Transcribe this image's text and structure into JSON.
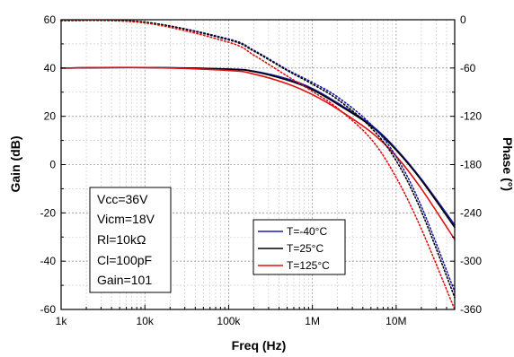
{
  "chart_data": {
    "type": "line",
    "xlabel": "Freq (Hz)",
    "ylabel": "Gain (dB)",
    "y2label": "Phase (°)",
    "xscale": "log",
    "xlim": [
      1000,
      50000000
    ],
    "ylim": [
      -60,
      60
    ],
    "y2lim": [
      -360,
      0
    ],
    "grid": true,
    "x_ticks": [
      {
        "value": 1000,
        "label": "1k"
      },
      {
        "value": 10000,
        "label": "10k"
      },
      {
        "value": 100000,
        "label": "100k"
      },
      {
        "value": 1000000,
        "label": "1M"
      },
      {
        "value": 10000000,
        "label": "10M"
      }
    ],
    "y_ticks": [
      {
        "value": 60,
        "label": "60"
      },
      {
        "value": 40,
        "label": "40"
      },
      {
        "value": 20,
        "label": "20"
      },
      {
        "value": 0,
        "label": "0"
      },
      {
        "value": -20,
        "label": "-20"
      },
      {
        "value": -40,
        "label": "-40"
      },
      {
        "value": -60,
        "label": "-60"
      }
    ],
    "y2_ticks": [
      {
        "value": 0,
        "label": "0"
      },
      {
        "value": -60,
        "label": "-60"
      },
      {
        "value": -120,
        "label": "-120"
      },
      {
        "value": -180,
        "label": "-180"
      },
      {
        "value": -240,
        "label": "-240"
      },
      {
        "value": -300,
        "label": "-300"
      },
      {
        "value": -360,
        "label": "-360"
      }
    ],
    "annotation_lines": [
      "Vcc=36V",
      "Vicm=18V",
      "Rl=10kΩ",
      "Cl=100pF",
      "Gain=101"
    ],
    "legend_position": "bottom-center",
    "series": [
      {
        "name": "T=-40°C",
        "color": "#1a1aa6",
        "axis": "gain",
        "style": "solid",
        "x": [
          1000,
          10000,
          100000,
          200000,
          500000,
          1000000,
          2000000,
          5000000,
          10000000,
          20000000,
          50000000
        ],
        "y": [
          40,
          40.2,
          39.6,
          38.7,
          35.5,
          31.5,
          25.5,
          16.5,
          6.5,
          -6,
          -25
        ]
      },
      {
        "name": "T=25°C",
        "color": "#000000",
        "axis": "gain",
        "style": "solid",
        "x": [
          1000,
          10000,
          100000,
          200000,
          500000,
          1000000,
          2000000,
          5000000,
          10000000,
          20000000,
          50000000
        ],
        "y": [
          40,
          40.2,
          39.5,
          38.5,
          35,
          31,
          25,
          16,
          6,
          -6.5,
          -26
        ]
      },
      {
        "name": "T=125°C",
        "color": "#e01010",
        "axis": "gain",
        "style": "solid",
        "x": [
          1000,
          10000,
          100000,
          200000,
          500000,
          1000000,
          2000000,
          5000000,
          10000000,
          20000000,
          50000000
        ],
        "y": [
          40,
          40.2,
          39,
          37.5,
          33.5,
          29,
          23,
          13.5,
          3.5,
          -10,
          -31
        ]
      },
      {
        "name": "T=-40°C",
        "color": "#1a1aa6",
        "axis": "phase",
        "style": "dotted",
        "x": [
          1000,
          10000,
          100000,
          200000,
          500000,
          1000000,
          2000000,
          5000000,
          10000000,
          20000000,
          50000000
        ],
        "y": [
          -1,
          -3,
          -24,
          -38,
          -62,
          -78,
          -96,
          -130,
          -170,
          -232,
          -338
        ]
      },
      {
        "name": "T=25°C",
        "color": "#000000",
        "axis": "phase",
        "style": "dotted",
        "x": [
          1000,
          10000,
          100000,
          200000,
          500000,
          1000000,
          2000000,
          5000000,
          10000000,
          20000000,
          50000000
        ],
        "y": [
          -1,
          -3,
          -25,
          -39,
          -63,
          -80,
          -99,
          -134,
          -175,
          -238,
          -345
        ]
      },
      {
        "name": "T=125°C",
        "color": "#e01010",
        "axis": "phase",
        "style": "dotted",
        "x": [
          1000,
          10000,
          100000,
          200000,
          500000,
          1000000,
          2000000,
          5000000,
          10000000,
          20000000,
          50000000
        ],
        "y": [
          -1,
          -4,
          -28,
          -44,
          -70,
          -89,
          -110,
          -148,
          -196,
          -260,
          -360
        ]
      }
    ],
    "legend": [
      {
        "label": "T=-40°C",
        "color": "#1a1aa6"
      },
      {
        "label": "T=25°C",
        "color": "#000000"
      },
      {
        "label": "T=125°C",
        "color": "#e01010"
      }
    ]
  }
}
